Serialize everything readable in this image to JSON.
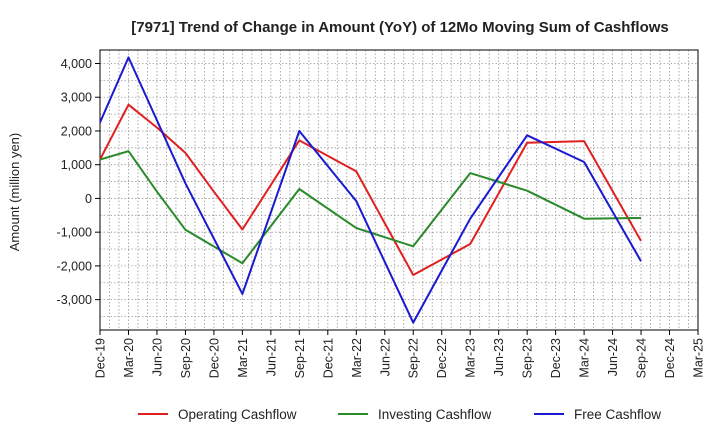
{
  "chart_data": {
    "type": "line",
    "title": "[7971]  Trend of Change in Amount (YoY) of 12Mo Moving Sum of Cashflows",
    "xlabel": "",
    "ylabel": "Amount (million yen)",
    "ylim": [
      -3900,
      4400
    ],
    "yticks": [
      4000,
      3000,
      2000,
      1000,
      0,
      -1000,
      -2000,
      -3000
    ],
    "ytick_labels": [
      "4,000",
      "3,000",
      "2,000",
      "1,000",
      "0",
      "-1,000",
      "-2,000",
      "-3,000"
    ],
    "categories": [
      "Dec-19",
      "Mar-20",
      "Jun-20",
      "Sep-20",
      "Dec-20",
      "Mar-21",
      "Jun-21",
      "Sep-21",
      "Dec-21",
      "Mar-22",
      "Jun-22",
      "Sep-22",
      "Dec-22",
      "Mar-23",
      "Jun-23",
      "Sep-23",
      "Dec-23",
      "Mar-24",
      "Jun-24",
      "Sep-24",
      "Dec-24",
      "Mar-25"
    ],
    "grid": true,
    "legend_position": "bottom",
    "series": [
      {
        "name": "Operating Cashflow",
        "color": "#e02020",
        "values": [
          1150,
          2780,
          2100,
          1350,
          200,
          -920,
          null,
          1720,
          null,
          800,
          null,
          -2270,
          null,
          -1350,
          null,
          1650,
          null,
          1700,
          null,
          -1260,
          null,
          null
        ]
      },
      {
        "name": "Investing Cashflow",
        "color": "#2a8a2a",
        "values": [
          1150,
          1400,
          200,
          -930,
          null,
          -1920,
          null,
          280,
          null,
          -880,
          null,
          -1420,
          null,
          750,
          null,
          230,
          null,
          -600,
          null,
          -580,
          null,
          null
        ]
      },
      {
        "name": "Free Cashflow",
        "color": "#1a1ad0",
        "values": [
          2250,
          4180,
          null,
          450,
          null,
          -2830,
          null,
          2000,
          null,
          -80,
          null,
          -3680,
          null,
          -600,
          null,
          1870,
          null,
          1080,
          null,
          -1860,
          null,
          null
        ]
      }
    ]
  }
}
